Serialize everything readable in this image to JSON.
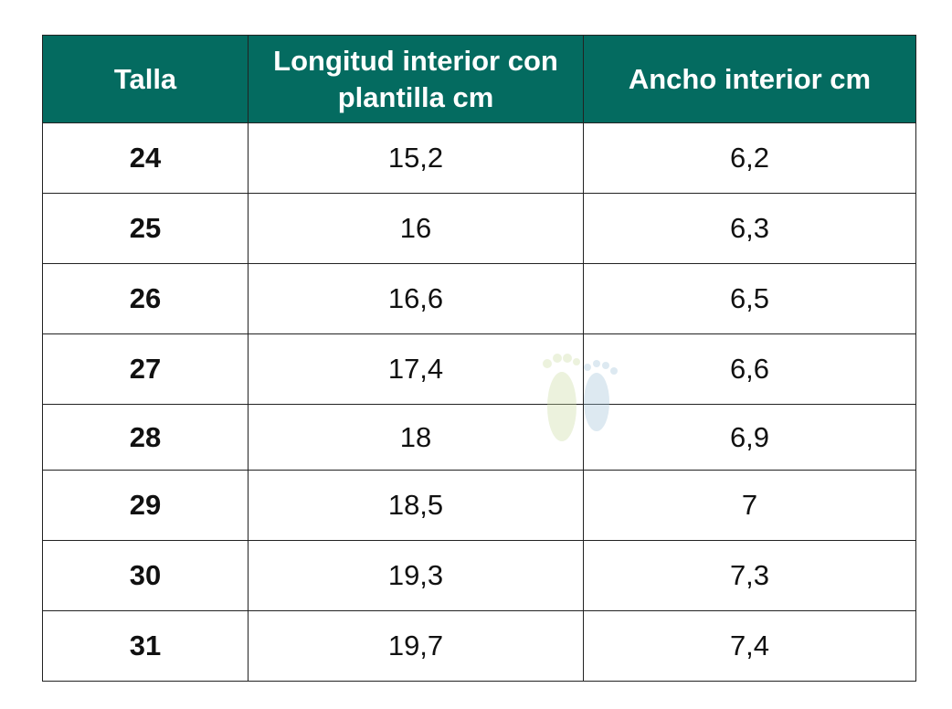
{
  "table": {
    "header": [
      "Talla",
      "Longitud interior con plantilla cm",
      "Ancho interior cm"
    ],
    "rows": [
      [
        "24",
        "15,2",
        "6,2"
      ],
      [
        "25",
        "16",
        "6,3"
      ],
      [
        "26",
        "16,6",
        "6,5"
      ],
      [
        "27",
        "17,4",
        "6,6"
      ],
      [
        "28",
        "18",
        "6,9"
      ],
      [
        "29",
        "18,5",
        "7"
      ],
      [
        "30",
        "19,3",
        "7,3"
      ],
      [
        "31",
        "19,7",
        "7,4"
      ]
    ]
  }
}
